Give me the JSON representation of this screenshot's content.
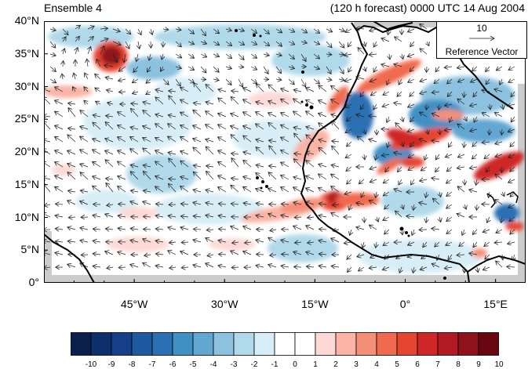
{
  "title": {
    "left": "Ensemble 4",
    "right": "(120 h forecast) 0000 UTC 14 Aug 2004"
  },
  "map": {
    "lat_range": [
      0,
      40
    ],
    "lon_range": [
      -60,
      20
    ],
    "lat_ticks": [
      "0°",
      "5°N",
      "10°N",
      "15°N",
      "20°N",
      "25°N",
      "30°N",
      "35°N",
      "40°N"
    ],
    "lon_ticks": [
      {
        "lon": -45,
        "label": "45°W"
      },
      {
        "lon": -30,
        "label": "30°W"
      },
      {
        "lon": -15,
        "label": "15°W"
      },
      {
        "lon": 0,
        "label": "0°"
      },
      {
        "lon": 15,
        "label": "15°E"
      }
    ]
  },
  "reference_vector": {
    "value": "10",
    "label": "Reference Vector"
  },
  "colorbar": {
    "labels": [
      "-10",
      "-9",
      "-8",
      "-7",
      "-6",
      "-5",
      "-4",
      "-3",
      "-2",
      "-1",
      "0",
      "1",
      "2",
      "3",
      "4",
      "5",
      "6",
      "7",
      "8",
      "9",
      "10"
    ],
    "colors": [
      "#0a1f4a",
      "#0d2f6b",
      "#163f89",
      "#1f5aa0",
      "#2a70b3",
      "#4190c4",
      "#62a6d2",
      "#8cc2df",
      "#b0d9ea",
      "#d8eef7",
      "#ffffff",
      "#ffffff",
      "#fdd9d6",
      "#f9b4a6",
      "#f58f77",
      "#f06a4f",
      "#e64532",
      "#cf2727",
      "#b21b23",
      "#8e121c",
      "#680712"
    ]
  }
}
